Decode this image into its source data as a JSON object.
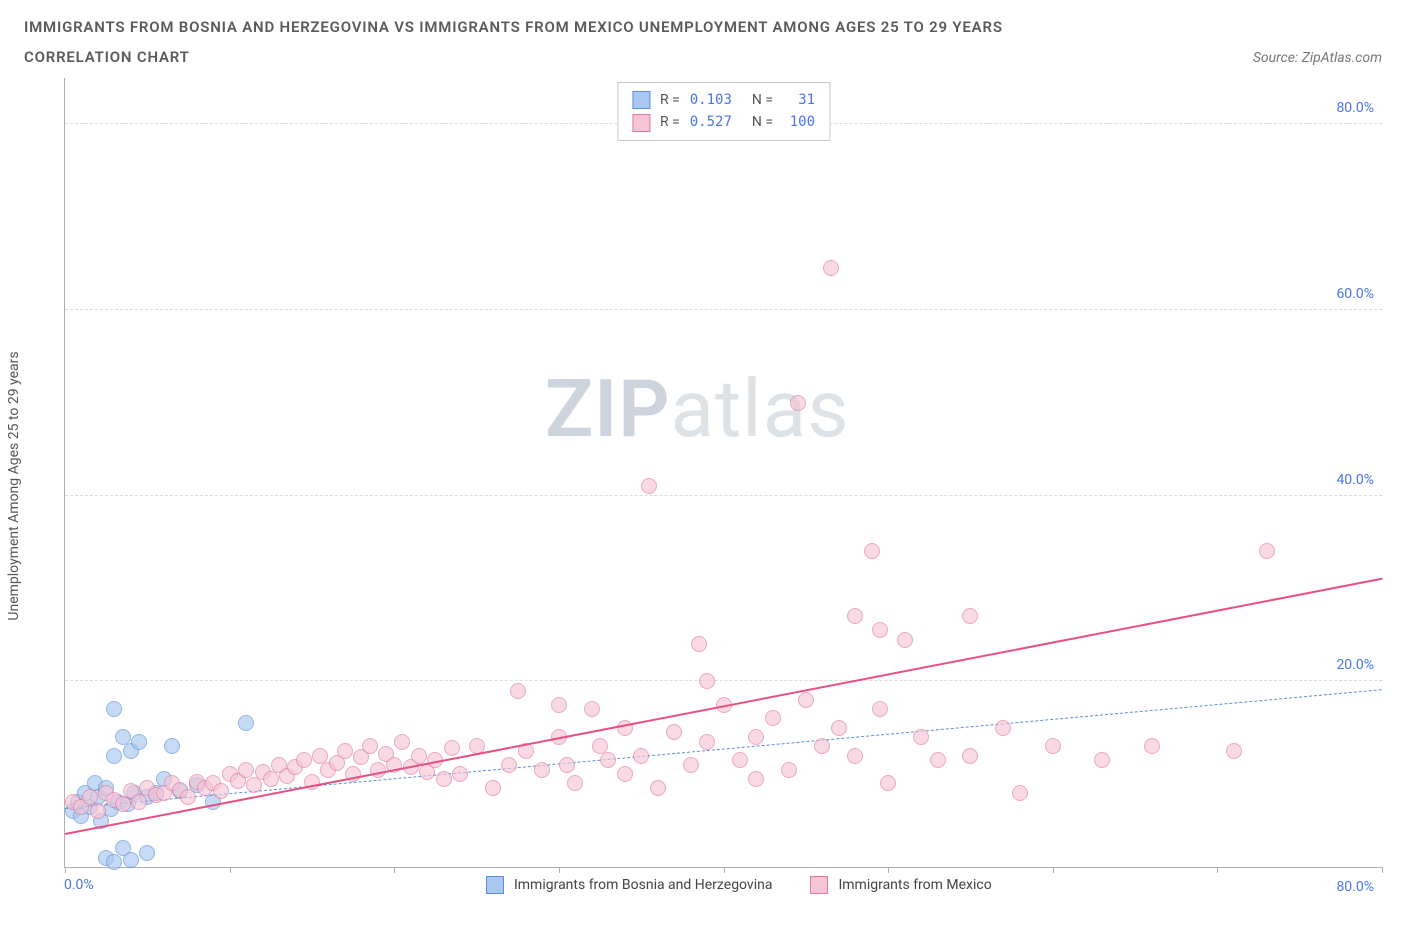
{
  "title_line1": "IMMIGRANTS FROM BOSNIA AND HERZEGOVINA VS IMMIGRANTS FROM MEXICO UNEMPLOYMENT AMONG AGES 25 TO 29 YEARS",
  "title_line2": "CORRELATION CHART",
  "source_label": "Source: ZipAtlas.com",
  "ylabel": "Unemployment Among Ages 25 to 29 years",
  "watermark_a": "ZIP",
  "watermark_b": "atlas",
  "chart": {
    "type": "scatter",
    "xlim": [
      0,
      80
    ],
    "ylim": [
      0,
      85
    ],
    "xticks": [
      0,
      10,
      20,
      30,
      40,
      50,
      60,
      70,
      80
    ],
    "yticks": [
      20,
      40,
      60,
      80
    ],
    "ytick_labels": [
      "20.0%",
      "40.0%",
      "60.0%",
      "80.0%"
    ],
    "x_zero_label": "0.0%",
    "x_max_label": "80.0%",
    "grid_color": "#dcdcdc",
    "axis_color": "#b0b0b0",
    "tick_label_color": "#4a74e8",
    "marker_radius": 8,
    "marker_stroke_width": 1.5,
    "series": [
      {
        "id": "bosnia",
        "label": "Immigrants from Bosnia and Herzegovina",
        "fill": "#a9c7f0",
        "stroke": "#5a8fd6",
        "r_value": "0.103",
        "n_value": "31",
        "trend": {
          "x1": 0,
          "y1": 6.2,
          "x2": 80,
          "y2": 19.0,
          "style": "dashed",
          "color": "#5a8fd6",
          "width": 1.5
        },
        "points": [
          [
            0.5,
            6
          ],
          [
            0.8,
            7
          ],
          [
            1,
            5.5
          ],
          [
            1.2,
            8
          ],
          [
            1.5,
            6.5
          ],
          [
            1.8,
            9
          ],
          [
            2,
            7.5
          ],
          [
            2.2,
            5
          ],
          [
            2.5,
            8.5
          ],
          [
            2.8,
            6.2
          ],
          [
            3,
            17
          ],
          [
            3.2,
            7
          ],
          [
            3.5,
            14
          ],
          [
            3.8,
            6.8
          ],
          [
            4,
            12.5
          ],
          [
            4.2,
            8
          ],
          [
            4.5,
            13.5
          ],
          [
            2.5,
            1
          ],
          [
            3,
            0.5
          ],
          [
            3.5,
            2
          ],
          [
            4,
            0.8
          ],
          [
            5,
            1.5
          ],
          [
            3,
            12
          ],
          [
            5,
            7.5
          ],
          [
            5.5,
            8
          ],
          [
            6,
            9.5
          ],
          [
            6.5,
            13
          ],
          [
            7,
            8.2
          ],
          [
            8,
            8.8
          ],
          [
            9,
            7
          ],
          [
            11,
            15.5
          ]
        ]
      },
      {
        "id": "mexico",
        "label": "Immigrants from Mexico",
        "fill": "#f5c5d6",
        "stroke": "#e07ba0",
        "r_value": "0.527",
        "n_value": "100",
        "trend": {
          "x1": 0,
          "y1": 3.5,
          "x2": 80,
          "y2": 31.0,
          "style": "solid",
          "color": "#e8517d",
          "width": 2.5
        },
        "points": [
          [
            0.5,
            7
          ],
          [
            1,
            6.5
          ],
          [
            1.5,
            7.5
          ],
          [
            2,
            6
          ],
          [
            2.5,
            8
          ],
          [
            3,
            7.2
          ],
          [
            3.5,
            6.8
          ],
          [
            4,
            8.2
          ],
          [
            4.5,
            7
          ],
          [
            5,
            8.5
          ],
          [
            5.5,
            7.8
          ],
          [
            6,
            8
          ],
          [
            6.5,
            9
          ],
          [
            7,
            8.3
          ],
          [
            7.5,
            7.5
          ],
          [
            8,
            9.2
          ],
          [
            8.5,
            8.5
          ],
          [
            9,
            9
          ],
          [
            9.5,
            8.2
          ],
          [
            10,
            10
          ],
          [
            10.5,
            9.3
          ],
          [
            11,
            10.5
          ],
          [
            11.5,
            8.8
          ],
          [
            12,
            10.2
          ],
          [
            12.5,
            9.5
          ],
          [
            13,
            11
          ],
          [
            13.5,
            9.8
          ],
          [
            14,
            10.8
          ],
          [
            14.5,
            11.5
          ],
          [
            15,
            9.2
          ],
          [
            15.5,
            12
          ],
          [
            16,
            10.5
          ],
          [
            16.5,
            11.2
          ],
          [
            17,
            12.5
          ],
          [
            17.5,
            10
          ],
          [
            18,
            11.8
          ],
          [
            18.5,
            13
          ],
          [
            19,
            10.5
          ],
          [
            19.5,
            12.2
          ],
          [
            20,
            11
          ],
          [
            20.5,
            13.5
          ],
          [
            21,
            10.8
          ],
          [
            21.5,
            12
          ],
          [
            22,
            10.2
          ],
          [
            22.5,
            11.5
          ],
          [
            23,
            9.5
          ],
          [
            23.5,
            12.8
          ],
          [
            24,
            10
          ],
          [
            25,
            13
          ],
          [
            26,
            8.5
          ],
          [
            27,
            11
          ],
          [
            27.5,
            19
          ],
          [
            28,
            12.5
          ],
          [
            29,
            10.5
          ],
          [
            30,
            14
          ],
          [
            30,
            17.5
          ],
          [
            30.5,
            11
          ],
          [
            31,
            9
          ],
          [
            32,
            17
          ],
          [
            32.5,
            13
          ],
          [
            33,
            11.5
          ],
          [
            34,
            10
          ],
          [
            34,
            15
          ],
          [
            35,
            12
          ],
          [
            35.5,
            41
          ],
          [
            36,
            8.5
          ],
          [
            37,
            14.5
          ],
          [
            38,
            11
          ],
          [
            38.5,
            24
          ],
          [
            39,
            13.5
          ],
          [
            39,
            20
          ],
          [
            40,
            17.5
          ],
          [
            41,
            11.5
          ],
          [
            42,
            9.5
          ],
          [
            42,
            14
          ],
          [
            43,
            16
          ],
          [
            44,
            10.5
          ],
          [
            44.5,
            50
          ],
          [
            45,
            18
          ],
          [
            46,
            13
          ],
          [
            46.5,
            64.5
          ],
          [
            47,
            15
          ],
          [
            48,
            12
          ],
          [
            48,
            27
          ],
          [
            49,
            34
          ],
          [
            49.5,
            17
          ],
          [
            49.5,
            25.5
          ],
          [
            50,
            9
          ],
          [
            51,
            24.5
          ],
          [
            52,
            14
          ],
          [
            53,
            11.5
          ],
          [
            55,
            12
          ],
          [
            55,
            27
          ],
          [
            57,
            15
          ],
          [
            58,
            8
          ],
          [
            60,
            13
          ],
          [
            63,
            11.5
          ],
          [
            66,
            13
          ],
          [
            71,
            12.5
          ],
          [
            73,
            34
          ]
        ]
      }
    ]
  },
  "stats_prefix_r": "R =",
  "stats_prefix_n": "N ="
}
